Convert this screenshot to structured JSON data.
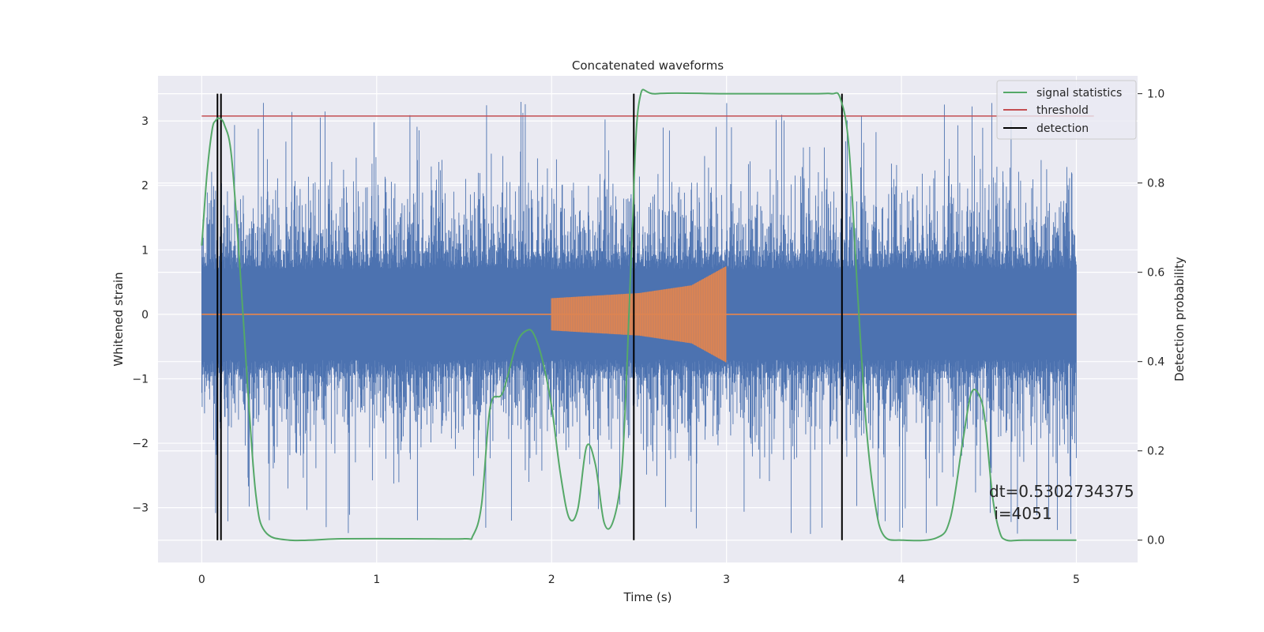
{
  "chart_data": {
    "type": "line",
    "title": "Concatenated waveforms",
    "xlabel": "Time (s)",
    "ylabel_left": "Whitened strain",
    "ylabel_right": "Detection probability",
    "xlim": [
      -0.25,
      5.35
    ],
    "ylim_left": [
      -3.85,
      3.7
    ],
    "ylim_right": [
      -0.05,
      1.04
    ],
    "x_ticks": [
      0,
      1,
      2,
      3,
      4,
      5
    ],
    "x_tick_labels": [
      "0",
      "1",
      "2",
      "3",
      "4",
      "5"
    ],
    "y_left_ticks": [
      -3,
      -2,
      -1,
      0,
      1,
      2,
      3
    ],
    "y_left_tick_labels": [
      "−3",
      "−2",
      "−1",
      "0",
      "1",
      "2",
      "3"
    ],
    "y_right_ticks": [
      0.0,
      0.2,
      0.4,
      0.6,
      0.8,
      1.0
    ],
    "y_right_tick_labels": [
      "0.0",
      "0.2",
      "0.4",
      "0.6",
      "0.8",
      "1.0"
    ],
    "grid": true,
    "legend_position": "top-right",
    "legend": [
      "signal statistics",
      "threshold",
      "detection"
    ],
    "series": [
      {
        "name": "",
        "axis": "left",
        "kind": "noise",
        "color": "#4c72b0",
        "x_range": [
          0,
          5
        ],
        "amplitude_range": [
          -3.45,
          3.3
        ]
      },
      {
        "name": "",
        "axis": "left",
        "kind": "chirp",
        "color": "#dd8452",
        "baseline": 0,
        "x_range": [
          2.0,
          3.0
        ],
        "envelope": [
          [
            2.0,
            0.25
          ],
          [
            2.5,
            0.33
          ],
          [
            2.8,
            0.45
          ],
          [
            3.0,
            0.75
          ]
        ]
      },
      {
        "name": "signal statistics",
        "axis": "right",
        "color": "#55a868",
        "x": [
          0.0,
          0.03,
          0.06,
          0.08,
          0.1,
          0.13,
          0.17,
          0.22,
          0.27,
          0.31,
          0.36,
          0.5,
          0.8,
          1.2,
          1.5,
          1.55,
          1.6,
          1.65,
          1.72,
          1.8,
          1.86,
          1.9,
          1.95,
          2.0,
          2.05,
          2.1,
          2.15,
          2.2,
          2.25,
          2.3,
          2.35,
          2.4,
          2.43,
          2.46,
          2.5,
          2.6,
          3.0,
          3.5,
          3.6,
          3.65,
          3.7,
          3.75,
          3.8,
          3.85,
          3.9,
          4.0,
          4.2,
          4.28,
          4.35,
          4.4,
          4.45,
          4.48,
          4.52,
          4.56,
          4.6,
          4.7,
          5.0
        ],
        "y": [
          0.66,
          0.82,
          0.92,
          0.94,
          0.945,
          0.93,
          0.86,
          0.6,
          0.3,
          0.1,
          0.02,
          0.0,
          0.003,
          0.003,
          0.003,
          0.01,
          0.08,
          0.3,
          0.33,
          0.44,
          0.47,
          0.46,
          0.4,
          0.3,
          0.15,
          0.05,
          0.07,
          0.21,
          0.17,
          0.04,
          0.04,
          0.15,
          0.38,
          0.68,
          0.98,
          1.0,
          1.0,
          1.0,
          1.0,
          0.99,
          0.88,
          0.55,
          0.25,
          0.08,
          0.01,
          0.0,
          0.005,
          0.05,
          0.22,
          0.33,
          0.32,
          0.26,
          0.1,
          0.02,
          0.0,
          0.0,
          0.0
        ]
      },
      {
        "name": "threshold",
        "axis": "right",
        "color": "#c44e52",
        "x": [
          0,
          5.1
        ],
        "y": [
          0.95,
          0.95
        ]
      },
      {
        "name": "detection",
        "axis": "right",
        "color": "#000000",
        "x_values": [
          0.09,
          0.11,
          2.47,
          3.66
        ],
        "y_range": [
          0.0,
          1.0
        ]
      }
    ],
    "annotation": {
      "line1": "dt=0.5302734375",
      "line2": " i=4051",
      "x": 4.5,
      "y": 0.1
    }
  }
}
